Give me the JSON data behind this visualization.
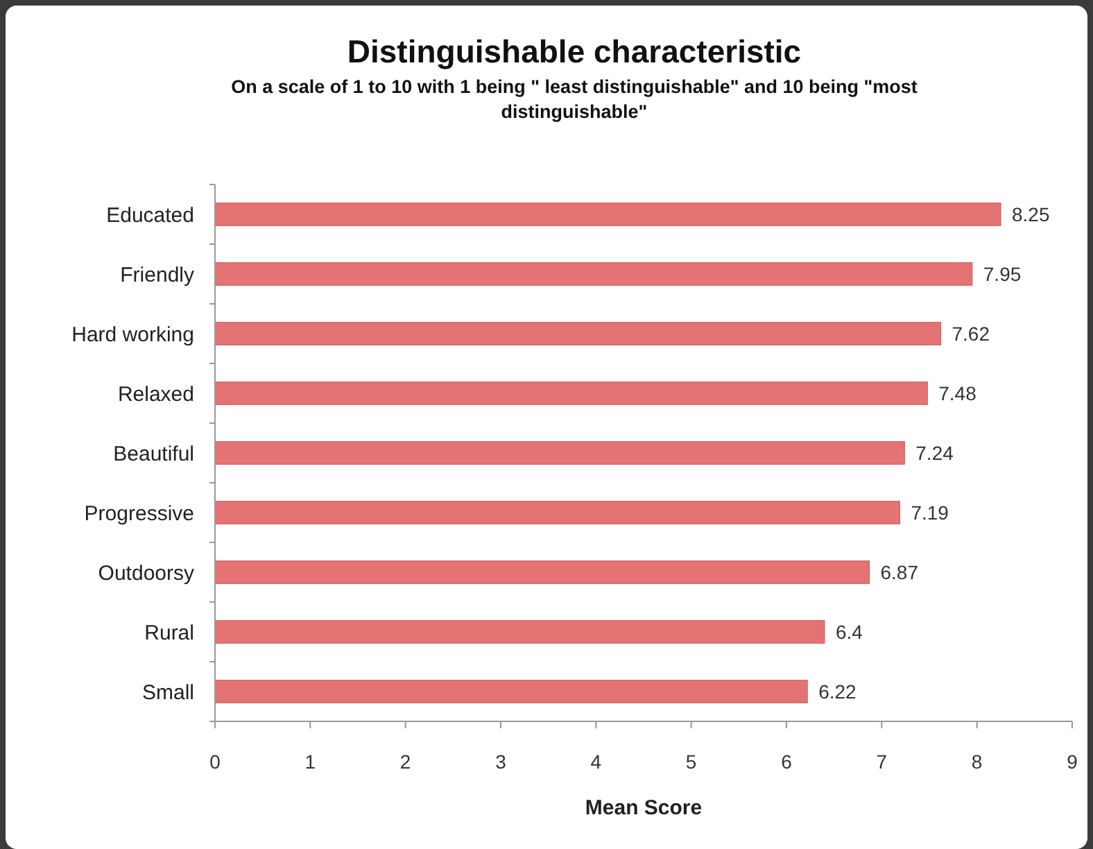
{
  "chart_data": {
    "type": "bar",
    "orientation": "horizontal",
    "title": "Distinguishable characteristic",
    "subtitle": "On a scale of 1 to 10 with 1 being \" least distinguishable\" and 10 being \"most distinguishable\"",
    "xlabel": "Mean Score",
    "categories": [
      "Educated",
      "Friendly",
      "Hard working",
      "Relaxed",
      "Beautiful",
      "Progressive",
      "Outdoorsy",
      "Rural",
      "Small"
    ],
    "values": [
      8.25,
      7.95,
      7.62,
      7.48,
      7.24,
      7.19,
      6.87,
      6.4,
      6.22
    ],
    "color": "#e57373",
    "xlim": [
      0,
      9
    ],
    "xticks": [
      0,
      1,
      2,
      3,
      4,
      5,
      6,
      7,
      8,
      9
    ],
    "data_labels": true
  }
}
